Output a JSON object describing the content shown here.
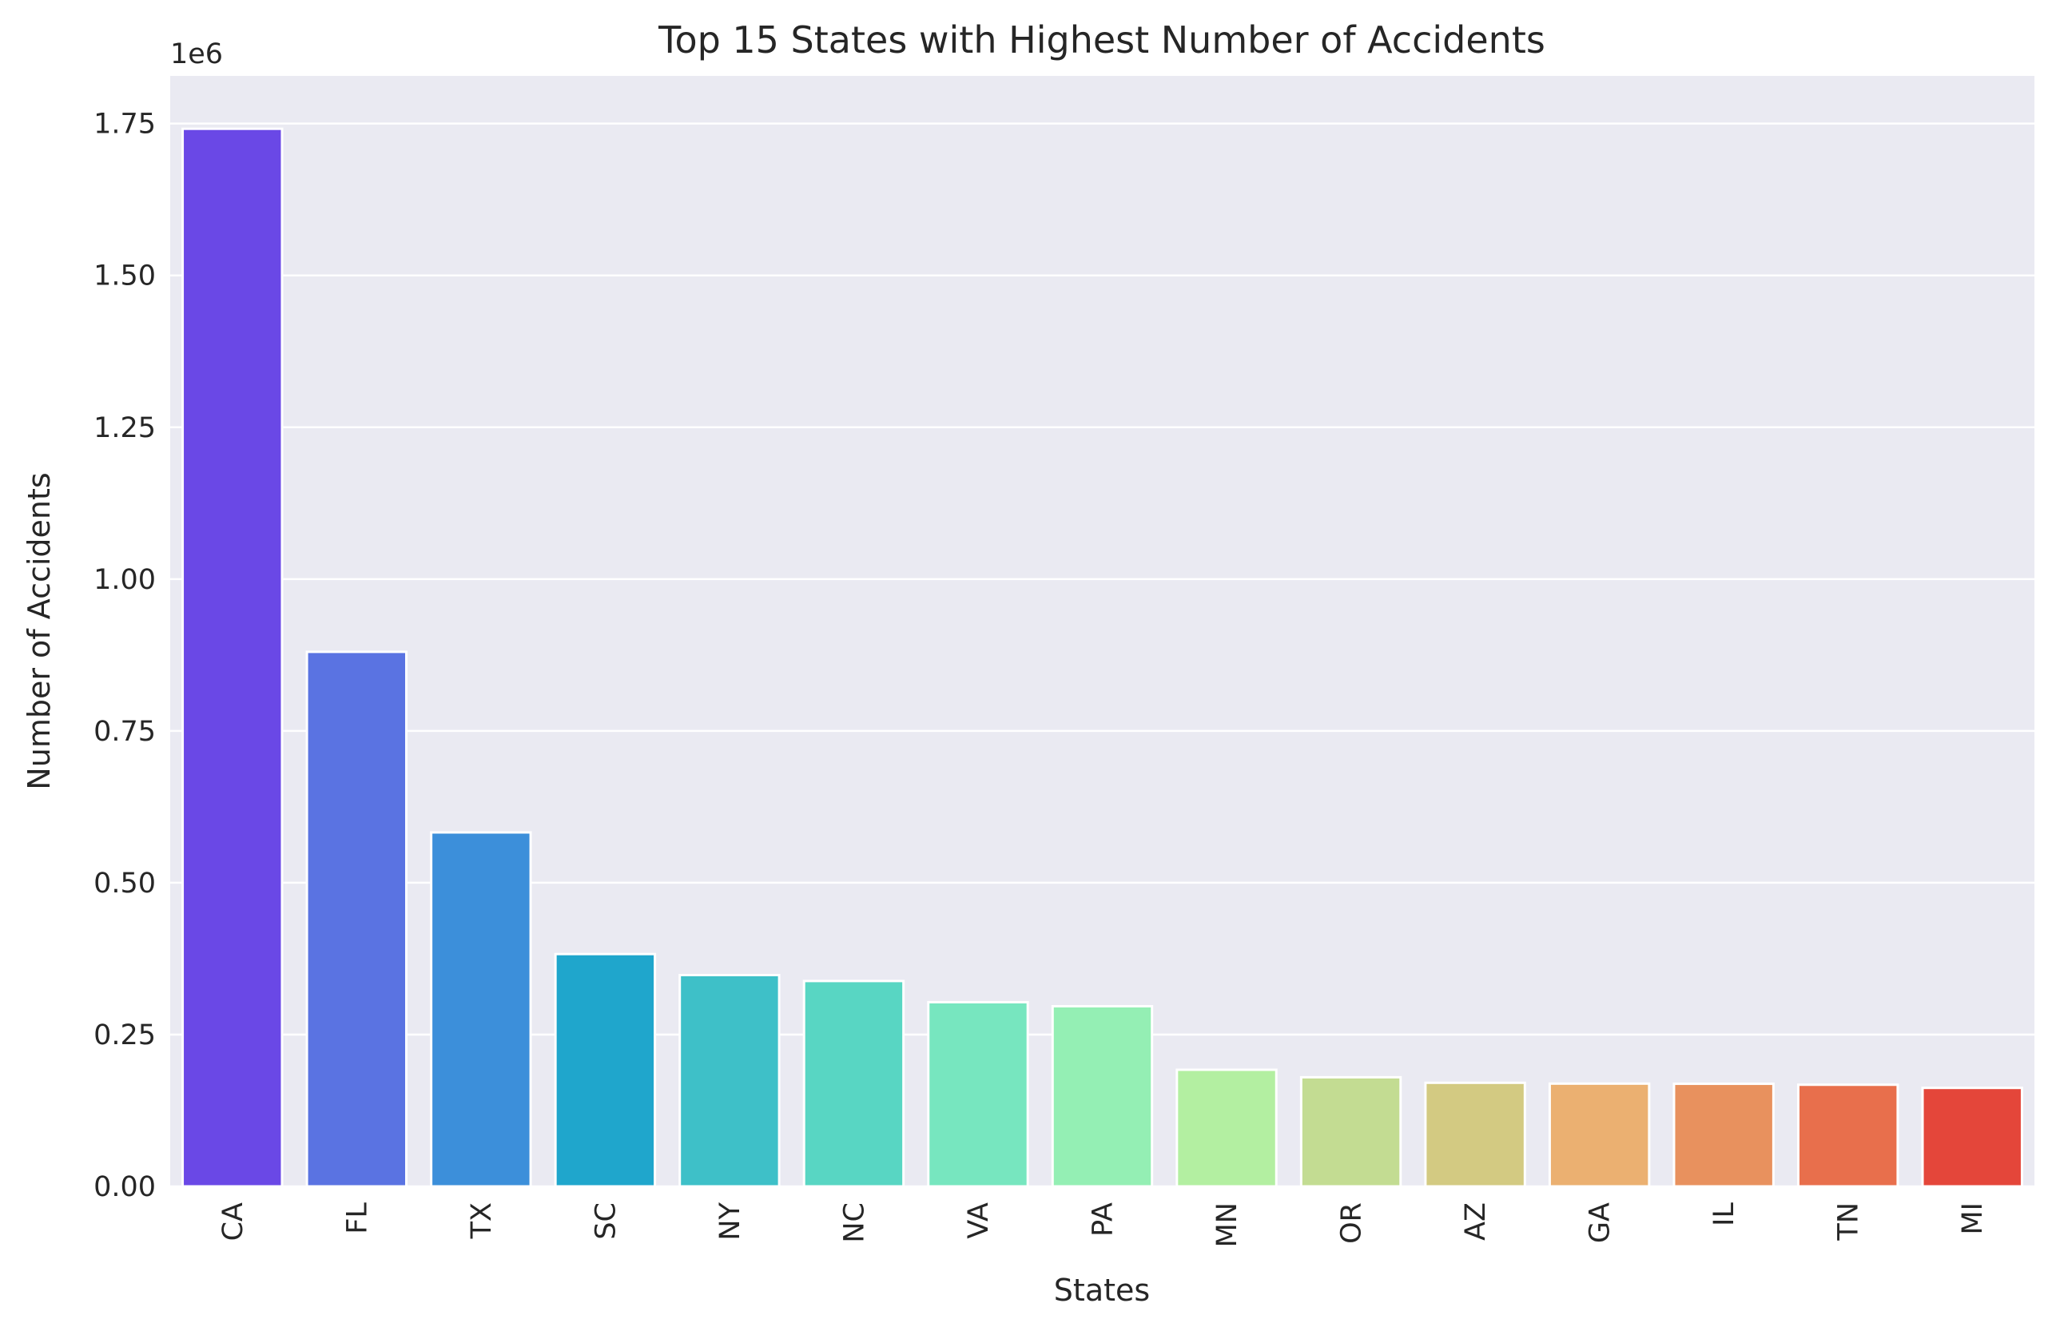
{
  "chart_data": {
    "type": "bar",
    "title": "Top 15 States with Highest Number of Accidents",
    "xlabel": "States",
    "ylabel": "Number of Accidents",
    "y_offset_label": "1e6",
    "categories": [
      "CA",
      "FL",
      "TX",
      "SC",
      "NY",
      "NC",
      "VA",
      "PA",
      "MN",
      "OR",
      "AZ",
      "GA",
      "IL",
      "TN",
      "MI"
    ],
    "values": [
      1741433,
      880192,
      582837,
      382557,
      347960,
      338199,
      303301,
      296620,
      192084,
      179660,
      170609,
      169234,
      168958,
      167388,
      162191
    ],
    "colors": [
      "#6a48e6",
      "#5a73e2",
      "#3c8fda",
      "#1fa6cc",
      "#3ec0c8",
      "#58d6c3",
      "#77e6bf",
      "#94efb4",
      "#b3efa1",
      "#c3dc92",
      "#d3ca82",
      "#ebb071",
      "#e8915e",
      "#e86f4c",
      "#e4463a"
    ],
    "yticks": [
      "0.00",
      "0.25",
      "0.50",
      "0.75",
      "1.00",
      "1.25",
      "1.50",
      "1.75"
    ],
    "ytick_values": [
      0,
      0.25,
      0.5,
      0.75,
      1.0,
      1.25,
      1.5,
      1.75
    ],
    "ylim": [
      0,
      1.8285
    ],
    "y_scale": 1000000,
    "grid": true,
    "background": "#eaeaf2",
    "grid_color": "#ffffff",
    "bar_edge_color": "#ffffff"
  }
}
